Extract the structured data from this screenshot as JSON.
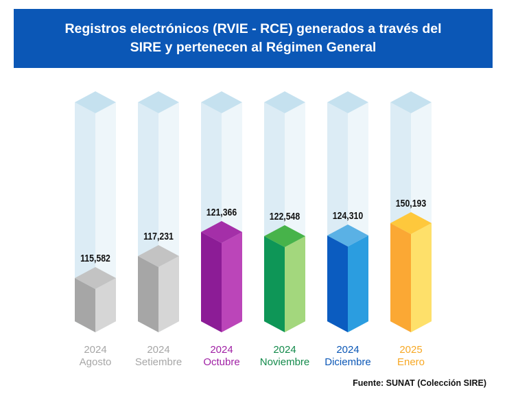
{
  "chart_data": {
    "type": "bar",
    "title_lines": [
      "Registros electrónicos (RVIE - RCE) generados a través del",
      "SIRE y pertenecen al Régimen General"
    ],
    "categories": [
      {
        "year": "2024",
        "month": "Agosto"
      },
      {
        "year": "2024",
        "month": "Setiembre"
      },
      {
        "year": "2024",
        "month": "Octubre"
      },
      {
        "year": "2024",
        "month": "Noviembre"
      },
      {
        "year": "2024",
        "month": "Diciembre"
      },
      {
        "year": "2025",
        "month": "Enero"
      }
    ],
    "values": [
      115582,
      117231,
      121366,
      122548,
      124310,
      150193
    ],
    "value_labels": [
      "115,582",
      "117,231",
      "121,366",
      "122,548",
      "124,310",
      "150,193"
    ],
    "colors": [
      {
        "left": "#a6a6a6",
        "right": "#d6d6d6",
        "top": "#c3c3c3",
        "label": "#a6a6a6"
      },
      {
        "left": "#a6a6a6",
        "right": "#d6d6d6",
        "top": "#c3c3c3",
        "label": "#a6a6a6"
      },
      {
        "left": "#8c1c96",
        "right": "#bb45b9",
        "top": "#a42fa8",
        "label": "#a021a5"
      },
      {
        "left": "#0e9657",
        "right": "#a3d77d",
        "top": "#47b34a",
        "label": "#138a4b"
      },
      {
        "left": "#0b5cc0",
        "right": "#2b9de0",
        "top": "#5ab1e5",
        "label": "#0b57b6"
      },
      {
        "left": "#fba834",
        "right": "#fee06a",
        "top": "#fec83c",
        "label": "#f7a824"
      }
    ],
    "ghost_colors": {
      "left": "#dcecf5",
      "right": "#eef6fa",
      "top": "#c5e1ef"
    },
    "xlabel": "",
    "ylabel": "",
    "legend": "none",
    "grid": false
  },
  "source": "Fuente: SUNAT (Colección SIRE)"
}
